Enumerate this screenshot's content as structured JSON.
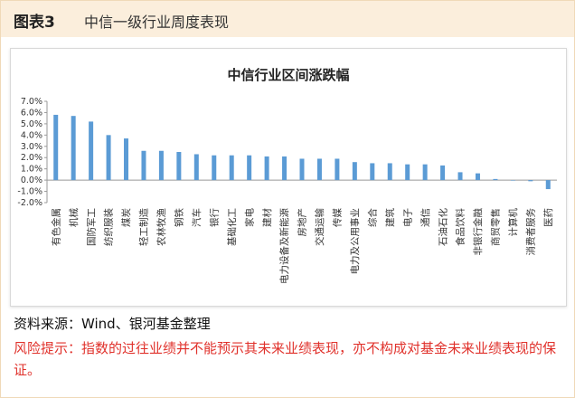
{
  "header": {
    "label_bold": "图表3",
    "title": "中信一级行业周度表现"
  },
  "colors": {
    "bar": "#5b9bd5",
    "header_bg": "#fbeedc",
    "risk_text": "#e0312b"
  },
  "chart_data": {
    "type": "bar",
    "title": "中信行业区间涨跌幅",
    "ylim": [
      -2.0,
      7.0
    ],
    "ytick_step": 1.0,
    "y_tick_labels": [
      "-2.0%",
      "-1.0%",
      "0.0%",
      "1.0%",
      "2.0%",
      "3.0%",
      "4.0%",
      "5.0%",
      "6.0%",
      "7.0%"
    ],
    "grid": false,
    "legend": "none",
    "categories": [
      "有色金属",
      "机械",
      "国防军工",
      "纺织服装",
      "煤炭",
      "轻工制造",
      "农林牧渔",
      "钢铁",
      "汽车",
      "银行",
      "基础化工",
      "家电",
      "建材",
      "电力设备及新能源",
      "房地产",
      "交通运输",
      "传媒",
      "电力及公用事业",
      "综合",
      "建筑",
      "电子",
      "通信",
      "石油石化",
      "食品饮料",
      "非银行金融",
      "商贸零售",
      "计算机",
      "消费者服务",
      "医药"
    ],
    "values": [
      5.8,
      5.7,
      5.2,
      4.0,
      3.7,
      2.6,
      2.6,
      2.5,
      2.3,
      2.2,
      2.2,
      2.2,
      2.1,
      2.1,
      1.9,
      1.9,
      1.9,
      1.6,
      1.5,
      1.5,
      1.4,
      1.4,
      1.3,
      0.7,
      0.6,
      0.1,
      0.0,
      -0.1,
      -0.8
    ]
  },
  "footer": {
    "source": "资料来源：Wind、银河基金整理",
    "risk": "风险提示：指数的过往业绩并不能预示其未来业绩表现，亦不构成对基金未来业绩表现的保证。"
  }
}
